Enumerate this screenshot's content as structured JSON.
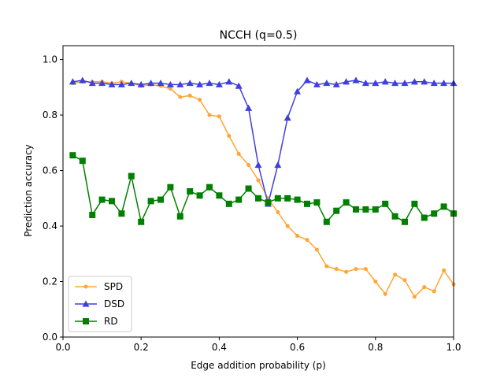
{
  "chart_data": {
    "type": "line",
    "title": "NCCH (q=0.5)",
    "xlabel": "Edge addition probability (p)",
    "ylabel": "Prediction accuracy",
    "xlim": [
      0.0,
      1.0
    ],
    "ylim": [
      0.0,
      1.05
    ],
    "xticks": [
      0.0,
      0.2,
      0.4,
      0.6,
      0.8,
      1.0
    ],
    "xtick_labels": [
      "0.0",
      "0.2",
      "0.4",
      "0.6",
      "0.8",
      "1.0"
    ],
    "yticks": [
      0.0,
      0.2,
      0.4,
      0.6,
      0.8,
      1.0
    ],
    "ytick_labels": [
      "0.0",
      "0.2",
      "0.4",
      "0.6",
      "0.8",
      "1.0"
    ],
    "grid": false,
    "legend_position": "lower-left",
    "x": [
      0.025,
      0.05,
      0.075,
      0.1,
      0.125,
      0.15,
      0.175,
      0.2,
      0.225,
      0.25,
      0.275,
      0.3,
      0.325,
      0.35,
      0.375,
      0.4,
      0.425,
      0.45,
      0.475,
      0.5,
      0.525,
      0.55,
      0.575,
      0.6,
      0.625,
      0.65,
      0.675,
      0.7,
      0.725,
      0.75,
      0.775,
      0.8,
      0.825,
      0.85,
      0.875,
      0.9,
      0.925,
      0.95,
      0.975,
      1.0
    ],
    "series": [
      {
        "name": "SPD",
        "color": "#ffa533",
        "marker": "circle",
        "values": [
          0.915,
          0.92,
          0.92,
          0.92,
          0.915,
          0.92,
          0.915,
          0.905,
          0.91,
          0.905,
          0.895,
          0.865,
          0.87,
          0.855,
          0.8,
          0.795,
          0.725,
          0.66,
          0.62,
          0.565,
          0.5,
          0.45,
          0.4,
          0.365,
          0.35,
          0.315,
          0.255,
          0.245,
          0.235,
          0.245,
          0.245,
          0.2,
          0.155,
          0.225,
          0.205,
          0.145,
          0.18,
          0.165,
          0.24,
          0.19
        ]
      },
      {
        "name": "DSD",
        "color": "#3f3fdf",
        "marker": "triangle",
        "values": [
          0.92,
          0.925,
          0.915,
          0.915,
          0.91,
          0.91,
          0.915,
          0.91,
          0.915,
          0.915,
          0.91,
          0.91,
          0.915,
          0.91,
          0.915,
          0.91,
          0.92,
          0.905,
          0.825,
          0.62,
          0.48,
          0.62,
          0.79,
          0.885,
          0.925,
          0.91,
          0.915,
          0.91,
          0.92,
          0.925,
          0.915,
          0.915,
          0.92,
          0.915,
          0.915,
          0.92,
          0.92,
          0.915,
          0.915,
          0.915
        ]
      },
      {
        "name": "RD",
        "color": "#008000",
        "marker": "square",
        "values": [
          0.655,
          0.635,
          0.44,
          0.495,
          0.49,
          0.445,
          0.58,
          0.415,
          0.49,
          0.495,
          0.54,
          0.435,
          0.525,
          0.51,
          0.54,
          0.51,
          0.48,
          0.495,
          0.535,
          0.5,
          0.485,
          0.5,
          0.5,
          0.495,
          0.48,
          0.485,
          0.415,
          0.455,
          0.485,
          0.46,
          0.46,
          0.46,
          0.48,
          0.435,
          0.415,
          0.48,
          0.43,
          0.445,
          0.47,
          0.445
        ]
      }
    ]
  }
}
